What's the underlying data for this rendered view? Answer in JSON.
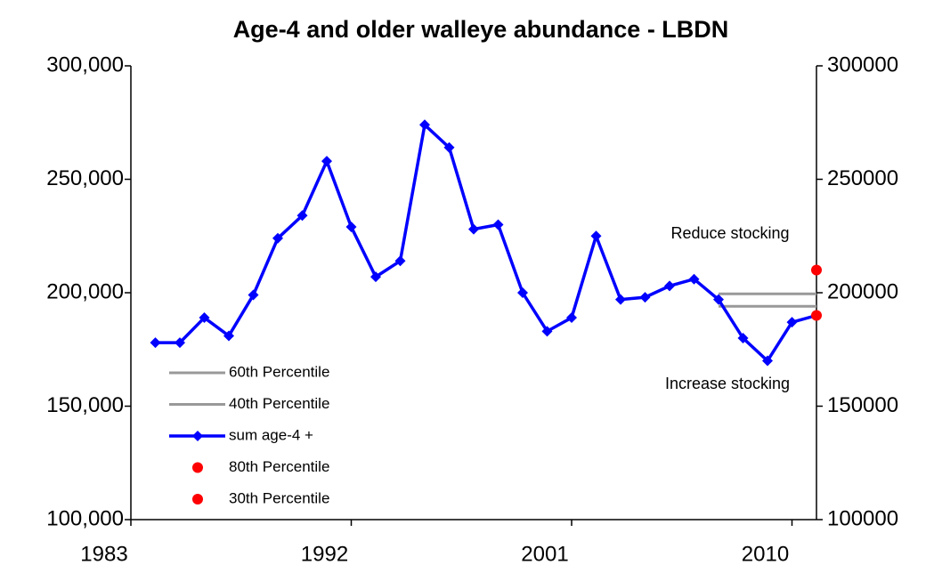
{
  "chart_data": {
    "type": "line",
    "title": "Age-4 and older walleye abundance - LBDN",
    "xlim": [
      1983,
      2011
    ],
    "xticks": [
      1983,
      1992,
      2001,
      2010
    ],
    "ylim": [
      100000,
      300000
    ],
    "yticks": [
      {
        "value": 100000,
        "label": "100,000"
      },
      {
        "value": 150000,
        "label": "150,000"
      },
      {
        "value": 200000,
        "label": "200,000"
      },
      {
        "value": 250000,
        "label": "250,000"
      },
      {
        "value": 300000,
        "label": "300,000"
      }
    ],
    "y2lim": [
      100000,
      300000
    ],
    "y2ticks": [
      100000,
      150000,
      200000,
      250000,
      300000
    ],
    "legend": "lower left",
    "annotations": [
      "Reduce stocking",
      "Increase stocking"
    ],
    "series": [
      {
        "name": "60th Percentile",
        "color": "#999999",
        "style": "line",
        "x": [
          2007,
          2011
        ],
        "values": [
          199500,
          199500
        ]
      },
      {
        "name": "40th Percentile",
        "color": "#999999",
        "style": "line",
        "x": [
          2007,
          2011
        ],
        "values": [
          194000,
          194000
        ]
      },
      {
        "name": "sum age-4 +",
        "color": "#0000ff",
        "style": "line-marker",
        "x": [
          1984,
          1985,
          1986,
          1987,
          1988,
          1989,
          1990,
          1991,
          1992,
          1993,
          1994,
          1995,
          1996,
          1997,
          1998,
          1999,
          2000,
          2001,
          2002,
          2003,
          2004,
          2005,
          2006,
          2007,
          2008,
          2009,
          2010,
          2011
        ],
        "values": [
          178000,
          178000,
          189000,
          181000,
          199000,
          224000,
          234000,
          258000,
          229000,
          207000,
          214000,
          274000,
          264000,
          228000,
          230000,
          200000,
          183000,
          189000,
          225000,
          197000,
          198000,
          203000,
          206000,
          197000,
          180000,
          170000,
          187000,
          190000
        ]
      },
      {
        "name": "80th Percentile",
        "color": "#ff0000",
        "style": "marker",
        "x": [
          2011
        ],
        "values": [
          210000
        ]
      },
      {
        "name": "30th Percentile",
        "color": "#ff0000",
        "style": "marker",
        "x": [
          2011
        ],
        "values": [
          190000
        ]
      }
    ]
  }
}
